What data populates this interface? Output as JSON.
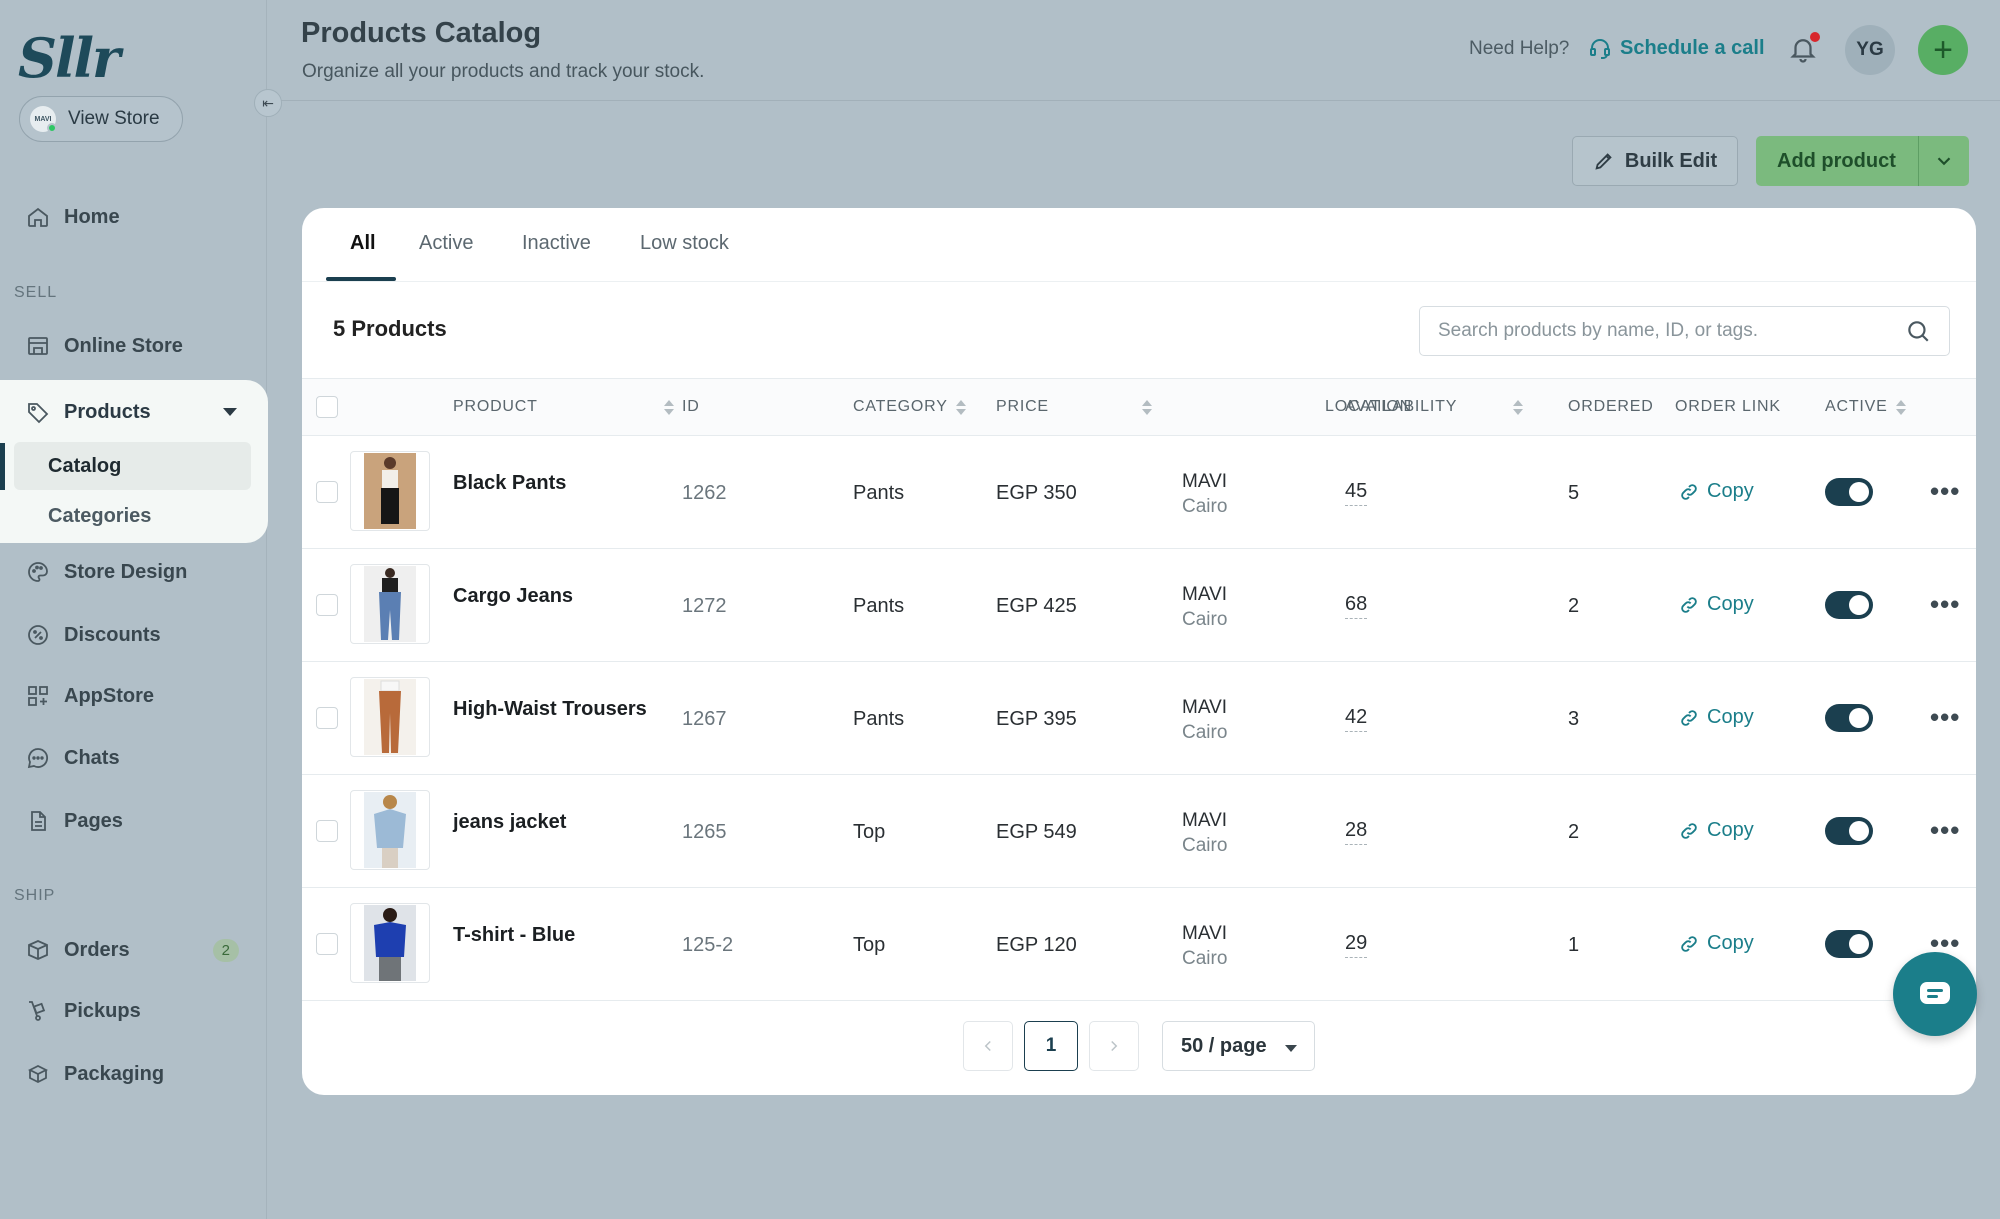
{
  "brand": {
    "logo_text": "Sllr"
  },
  "sidebar": {
    "view_store": "View Store",
    "store_avatar_text": "MAVI",
    "home": "Home",
    "sections": {
      "sell": "SELL",
      "ship": "SHIP"
    },
    "products": "Products",
    "products_sub": {
      "catalog": "Catalog",
      "categories": "Categories"
    },
    "store_design": "Store Design",
    "discounts": "Discounts",
    "appstore": "AppStore",
    "chats": "Chats",
    "pages": "Pages",
    "orders": "Orders",
    "orders_badge": "2",
    "pickups": "Pickups",
    "packaging": "Packaging"
  },
  "header": {
    "title": "Products Catalog",
    "subtitle": "Organize all your products and track your stock.",
    "need_help": "Need Help?",
    "schedule_call": "Schedule a call",
    "avatar_initials": "YG",
    "plus": "+"
  },
  "actions": {
    "bulk_edit": "Builk Edit",
    "add_product": "Add product"
  },
  "tabs": [
    "All",
    "Active",
    "Inactive",
    "Low stock"
  ],
  "product_count": "5 Products",
  "search": {
    "placeholder": "Search products by name, ID, or tags."
  },
  "table": {
    "columns": [
      "PRODUCT",
      "ID",
      "CATEGORY",
      "PRICE",
      "LOCATION",
      "AVAILABILITY",
      "ORDERED",
      "ORDER LINK",
      "ACTIVE"
    ],
    "rows": [
      {
        "name": "Black Pants",
        "id": "1262",
        "category": "Pants",
        "price": "EGP 350",
        "location": "MAVI",
        "city": "Cairo",
        "availability": "45",
        "ordered": "5",
        "link": "Copy",
        "active": true
      },
      {
        "name": "Cargo Jeans",
        "id": "1272",
        "category": "Pants",
        "price": "EGP 425",
        "location": "MAVI",
        "city": "Cairo",
        "availability": "68",
        "ordered": "2",
        "link": "Copy",
        "active": true
      },
      {
        "name": "High-Waist Trousers",
        "id": "1267",
        "category": "Pants",
        "price": "EGP 395",
        "location": "MAVI",
        "city": "Cairo",
        "availability": "42",
        "ordered": "3",
        "link": "Copy",
        "active": true
      },
      {
        "name": "jeans jacket",
        "id": "1265",
        "category": "Top",
        "price": "EGP 549",
        "location": "MAVI",
        "city": "Cairo",
        "availability": "28",
        "ordered": "2",
        "link": "Copy",
        "active": true
      },
      {
        "name": "T-shirt - Blue",
        "id": "125-2",
        "category": "Top",
        "price": "EGP 120",
        "location": "MAVI",
        "city": "Cairo",
        "availability": "29",
        "ordered": "1",
        "link": "Copy",
        "active": true
      }
    ]
  },
  "pagination": {
    "current_page": "1",
    "per_page": "50 / page"
  },
  "colors": {
    "accent": "#1b7e8a",
    "primary_dark": "#1b3f4f",
    "add_button": "#7bba7e",
    "notification_dot": "#d8262c"
  }
}
